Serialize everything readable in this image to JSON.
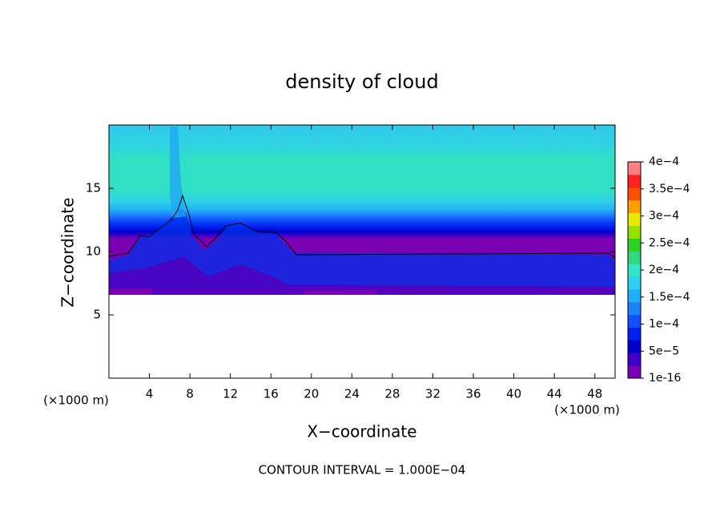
{
  "chart_data": {
    "type": "contour",
    "title": "density of cloud",
    "x_label": "X−coordinate",
    "y_label": "Z−coordinate",
    "x_unit_left": "(×1000 m)",
    "x_unit_right": "(×1000 m)",
    "footnote": "CONTOUR INTERVAL = 1.000E−04",
    "xlim": [
      0,
      50
    ],
    "xticks": [
      4,
      8,
      12,
      16,
      20,
      24,
      28,
      32,
      36,
      40,
      44,
      48
    ],
    "ylim": [
      0,
      20
    ],
    "yticks": [
      5,
      10,
      15
    ],
    "colorbar": {
      "lim": [
        1e-16,
        0.0004
      ],
      "ticks": [
        1e-16,
        {
          "value": 5e-05,
          "label": "5e−5"
        },
        {
          "value": 0.0001,
          "label": "1e−4"
        },
        {
          "value": 0.00015,
          "label": "1.5e−4"
        },
        {
          "value": 0.0002,
          "label": "2e−4"
        },
        {
          "value": 0.00025,
          "label": "2.5e−4"
        },
        {
          "value": 0.0003,
          "label": "3e−4"
        },
        {
          "value": 0.00035,
          "label": "3.5e−4"
        },
        {
          "value": 0.0004,
          "label": "4e−4"
        }
      ],
      "colors": [
        "#7a00b4",
        "#4000c8",
        "#0000c8",
        "#0020f0",
        "#1050ff",
        "#1c80ff",
        "#20b0f8",
        "#30d0f0",
        "#30e8c8",
        "#30d880",
        "#30d020",
        "#98e000",
        "#e8e800",
        "#ffa000",
        "#ff5000",
        "#ff2020",
        "#ff8080"
      ]
    }
  }
}
